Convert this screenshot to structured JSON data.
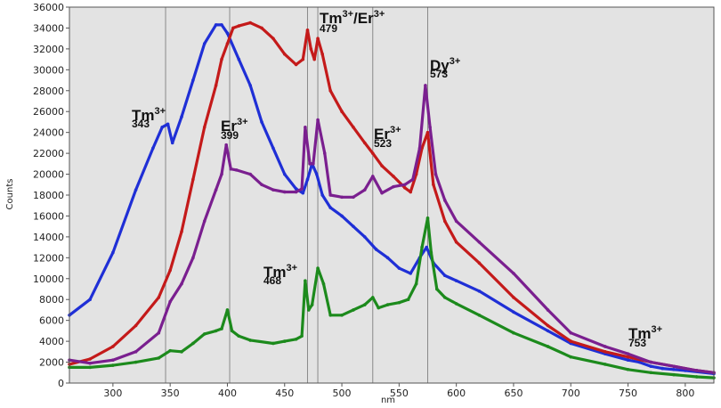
{
  "chart_data": {
    "type": "line",
    "xlabel": "nm",
    "ylabel": "Counts",
    "xlim": [
      262,
      825
    ],
    "ylim": [
      0,
      36000
    ],
    "x_ticks": [
      300,
      350,
      400,
      450,
      500,
      550,
      600,
      650,
      700,
      750,
      800
    ],
    "y_ticks": [
      0,
      2000,
      4000,
      6000,
      8000,
      10000,
      12000,
      14000,
      16000,
      18000,
      20000,
      22000,
      24000,
      26000,
      28000,
      30000,
      32000,
      34000,
      36000
    ],
    "y_tick_labels": [
      "0",
      "2000",
      "4000",
      "6000",
      "8000",
      "10000",
      "12000",
      "14000",
      "16000",
      "18000",
      "20000",
      "22000",
      "24000",
      "26000",
      "28000",
      "30000",
      "32000",
      "34000",
      "36000"
    ],
    "grid": false,
    "plot_background": "#e3e3e3",
    "reference_lines_x": [
      346,
      402,
      470,
      479,
      527,
      575
    ],
    "series": [
      {
        "color": "#1f2fd6",
        "x": [
          262,
          280,
          300,
          320,
          335,
          343,
          348,
          352,
          360,
          370,
          380,
          390,
          395,
          400,
          410,
          420,
          430,
          440,
          450,
          460,
          466,
          470,
          474,
          478,
          483,
          490,
          500,
          510,
          520,
          530,
          540,
          550,
          560,
          568,
          574,
          580,
          590,
          600,
          620,
          650,
          680,
          700,
          730,
          750,
          760,
          770,
          780,
          790,
          800,
          825
        ],
        "values": [
          6500,
          8000,
          12500,
          18500,
          22500,
          24500,
          24800,
          23000,
          25500,
          29000,
          32500,
          34300,
          34300,
          33500,
          31000,
          28500,
          25000,
          22500,
          20000,
          18600,
          18200,
          19500,
          21000,
          20000,
          18000,
          16800,
          16000,
          15000,
          14000,
          12800,
          12000,
          11000,
          10500,
          12000,
          13000,
          11500,
          10300,
          9800,
          8800,
          6800,
          5000,
          3800,
          2800,
          2200,
          2000,
          1600,
          1400,
          1300,
          1200,
          900
        ]
      },
      {
        "color": "#c41a1a",
        "x": [
          262,
          280,
          300,
          320,
          340,
          350,
          360,
          370,
          380,
          390,
          395,
          400,
          405,
          410,
          420,
          430,
          440,
          450,
          460,
          466,
          470,
          473,
          476,
          479,
          483,
          490,
          500,
          510,
          520,
          527,
          535,
          545,
          555,
          560,
          565,
          570,
          575,
          580,
          590,
          600,
          620,
          650,
          680,
          700,
          730,
          750,
          770,
          790,
          810,
          825
        ],
        "values": [
          1800,
          2300,
          3500,
          5500,
          8200,
          10800,
          14500,
          19500,
          24500,
          28500,
          31000,
          32500,
          34000,
          34200,
          34500,
          34000,
          33000,
          31500,
          30500,
          31000,
          33800,
          32000,
          31000,
          33000,
          31500,
          28000,
          26000,
          24500,
          23000,
          22000,
          20800,
          19800,
          18700,
          18300,
          20000,
          22500,
          24000,
          19000,
          15500,
          13500,
          11500,
          8200,
          5500,
          4000,
          3000,
          2500,
          2000,
          1600,
          1200,
          1000
        ]
      },
      {
        "color": "#7a1f8f",
        "x": [
          262,
          280,
          300,
          320,
          340,
          350,
          360,
          370,
          380,
          390,
          395,
          399,
          403,
          408,
          420,
          430,
          440,
          450,
          460,
          465,
          468,
          472,
          475,
          479,
          485,
          490,
          500,
          510,
          520,
          527,
          535,
          545,
          555,
          562,
          568,
          573,
          577,
          582,
          590,
          600,
          620,
          650,
          680,
          700,
          730,
          750,
          770,
          790,
          810,
          825
        ],
        "values": [
          2200,
          1900,
          2200,
          3000,
          4800,
          7800,
          9500,
          12000,
          15500,
          18500,
          20000,
          22800,
          20500,
          20400,
          20000,
          19000,
          18500,
          18300,
          18300,
          18600,
          24500,
          21000,
          21000,
          25200,
          22000,
          18000,
          17800,
          17800,
          18500,
          19800,
          18200,
          18800,
          19000,
          19500,
          22500,
          28500,
          24500,
          20000,
          17500,
          15500,
          13500,
          10500,
          7000,
          4800,
          3500,
          2800,
          2000,
          1600,
          1200,
          1000
        ]
      },
      {
        "color": "#1c8a1c",
        "x": [
          262,
          280,
          300,
          320,
          340,
          350,
          360,
          370,
          380,
          390,
          395,
          400,
          404,
          410,
          420,
          440,
          450,
          460,
          465,
          468,
          471,
          474,
          479,
          484,
          490,
          500,
          510,
          520,
          527,
          532,
          540,
          550,
          558,
          565,
          570,
          575,
          578,
          583,
          590,
          600,
          620,
          650,
          680,
          700,
          730,
          750,
          770,
          790,
          810,
          825
        ],
        "values": [
          1500,
          1500,
          1700,
          2000,
          2400,
          3100,
          3000,
          3800,
          4700,
          5000,
          5200,
          7000,
          5000,
          4500,
          4100,
          3800,
          4000,
          4200,
          4500,
          9800,
          7000,
          7500,
          11000,
          9500,
          6500,
          6500,
          7000,
          7500,
          8200,
          7200,
          7500,
          7700,
          8000,
          9500,
          13000,
          15800,
          12500,
          9000,
          8200,
          7600,
          6500,
          4800,
          3500,
          2500,
          1800,
          1300,
          1000,
          800,
          600,
          500
        ]
      }
    ],
    "annotations": [
      {
        "ion": "Tm",
        "charge": "3+",
        "wavelength": "343"
      },
      {
        "ion": "Er",
        "charge": "3+",
        "wavelength": "399"
      },
      {
        "ion": "Tm",
        "charge": "3+",
        "wavelength": "468"
      },
      {
        "ion": "Tm",
        "charge": "3+",
        "ion2": "Er",
        "charge2": "3+",
        "wavelength": "479"
      },
      {
        "ion": "Er",
        "charge": "3+",
        "wavelength": "523"
      },
      {
        "ion": "Dy",
        "charge": "3+",
        "wavelength": "573"
      },
      {
        "ion": "Tm",
        "charge": "3+",
        "wavelength": "753"
      }
    ]
  }
}
